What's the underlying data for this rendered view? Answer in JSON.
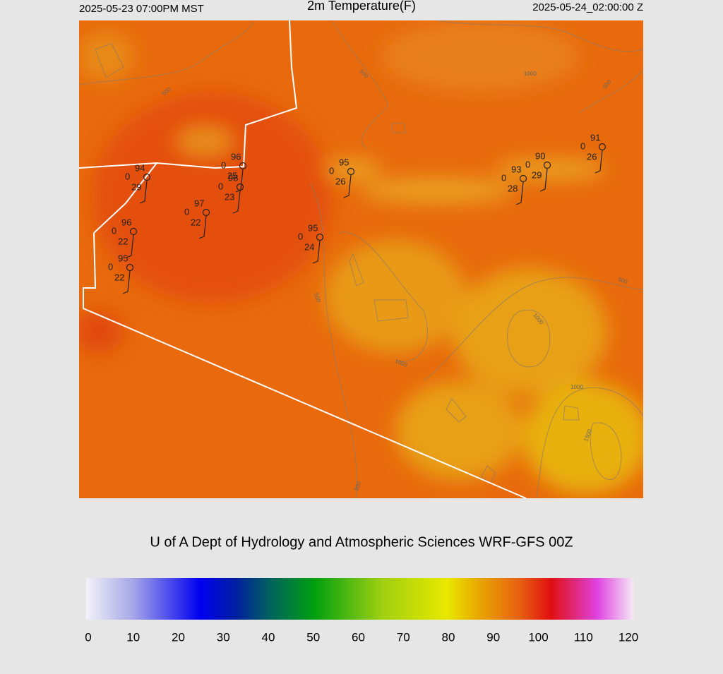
{
  "header": {
    "left": "2025-05-23 07:00PM MST",
    "title": "2m Temperature(F)",
    "right": "2025-05-24_02:00:00 Z"
  },
  "stations": [
    {
      "temp": 94,
      "flag": 0,
      "dewpoint": 29
    },
    {
      "temp": 96,
      "flag": 0,
      "dewpoint": 25
    },
    {
      "temp": 98,
      "flag": 0,
      "dewpoint": 23
    },
    {
      "temp": 97,
      "flag": 0,
      "dewpoint": 22
    },
    {
      "temp": 96,
      "flag": 0,
      "dewpoint": 22
    },
    {
      "temp": 95,
      "flag": 0,
      "dewpoint": 22
    },
    {
      "temp": 95,
      "flag": 0,
      "dewpoint": 26
    },
    {
      "temp": 95,
      "flag": 0,
      "dewpoint": 24
    },
    {
      "temp": 93,
      "flag": 0,
      "dewpoint": 28
    },
    {
      "temp": 90,
      "flag": 0,
      "dewpoint": 29
    },
    {
      "temp": 91,
      "flag": 0,
      "dewpoint": 26
    }
  ],
  "contour_labels": [
    500,
    500,
    1000,
    500,
    500,
    1000,
    500,
    1000,
    1000,
    1500,
    500
  ],
  "footer": "U of A Dept of Hydrology and Atmospheric Sciences WRF-GFS 00Z",
  "colorbar": {
    "lim": [
      0,
      120
    ],
    "ticks": [
      0,
      10,
      20,
      30,
      40,
      50,
      60,
      70,
      80,
      90,
      100,
      110,
      120
    ],
    "stops": [
      {
        "value": 0,
        "color": "#f2f2f8"
      },
      {
        "value": 10,
        "color": "#a8a8e8"
      },
      {
        "value": 25,
        "color": "#0000f0"
      },
      {
        "value": 33,
        "color": "#0020a0"
      },
      {
        "value": 40,
        "color": "#006060"
      },
      {
        "value": 50,
        "color": "#00a010"
      },
      {
        "value": 65,
        "color": "#a0d010"
      },
      {
        "value": 79,
        "color": "#e8e800"
      },
      {
        "value": 86,
        "color": "#e8a800"
      },
      {
        "value": 95,
        "color": "#e86010"
      },
      {
        "value": 102,
        "color": "#e01010"
      },
      {
        "value": 112,
        "color": "#e040e0"
      },
      {
        "value": 120,
        "color": "#f4e8f4"
      }
    ]
  }
}
